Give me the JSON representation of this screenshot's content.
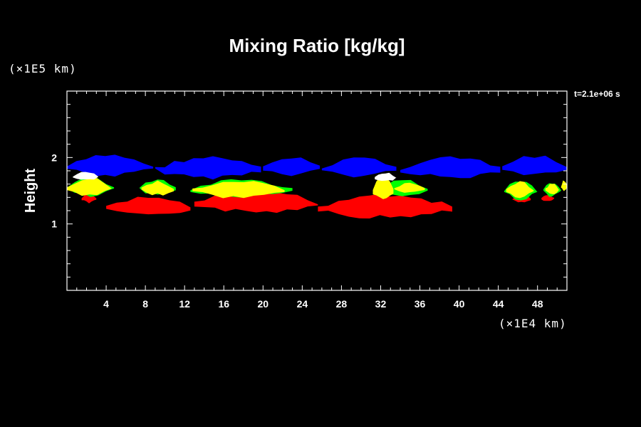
{
  "chart_data": {
    "type": "heatmap",
    "title": "Mixing Ratio [kg/kg]",
    "ylabel": "Height",
    "xlabel": "",
    "x_unit": "(×1E4 km)",
    "y_unit": "(×1E5 km)",
    "time_label": "t=2.1e+06 s",
    "xlim": [
      0,
      51
    ],
    "ylim": [
      0,
      3
    ],
    "x_ticks": [
      4,
      8,
      12,
      16,
      20,
      24,
      28,
      32,
      36,
      40,
      44,
      48
    ],
    "y_ticks": [
      1,
      2
    ],
    "background": "#000000",
    "layers": [
      {
        "color": "#0000ff",
        "blobs": [
          {
            "x": [
              0,
              8.8
            ],
            "y": [
              1.73,
              2.03
            ]
          },
          {
            "x": [
              9,
              19.8
            ],
            "y": [
              1.7,
              2.0
            ]
          },
          {
            "x": [
              20,
              25.8
            ],
            "y": [
              1.73,
              2.0
            ]
          },
          {
            "x": [
              26,
              33.6
            ],
            "y": [
              1.72,
              2.0
            ]
          },
          {
            "x": [
              34,
              44.2
            ],
            "y": [
              1.7,
              2.0
            ]
          },
          {
            "x": [
              44.4,
              51
            ],
            "y": [
              1.74,
              2.02
            ]
          }
        ]
      },
      {
        "color": "#ff0000",
        "blobs": [
          {
            "x": [
              1.5,
              3
            ],
            "y": [
              1.32,
              1.45
            ]
          },
          {
            "x": [
              4,
              12.6
            ],
            "y": [
              1.12,
              1.4
            ]
          },
          {
            "x": [
              13,
              25.6
            ],
            "y": [
              1.18,
              1.5
            ]
          },
          {
            "x": [
              25.6,
              39.3
            ],
            "y": [
              1.1,
              1.45
            ]
          },
          {
            "x": [
              45.4,
              47.3
            ],
            "y": [
              1.32,
              1.44
            ]
          },
          {
            "x": [
              48.4,
              49.7
            ],
            "y": [
              1.34,
              1.44
            ]
          }
        ]
      },
      {
        "color": "#00ff00",
        "blobs": [
          {
            "x": [
              0,
              4.8
            ],
            "y": [
              1.42,
              1.7
            ]
          },
          {
            "x": [
              7.4,
              11.1
            ],
            "y": [
              1.43,
              1.67
            ]
          },
          {
            "x": [
              12.6,
              23
            ],
            "y": [
              1.42,
              1.66
            ]
          },
          {
            "x": [
              31.6,
              36.8
            ],
            "y": [
              1.42,
              1.66
            ]
          },
          {
            "x": [
              44.6,
              48
            ],
            "y": [
              1.38,
              1.65
            ]
          },
          {
            "x": [
              48.6,
              50.4
            ],
            "y": [
              1.42,
              1.62
            ]
          }
        ]
      },
      {
        "color": "#ffff00",
        "blobs": [
          {
            "x": [
              0,
              4.6
            ],
            "y": [
              1.42,
              1.68
            ]
          },
          {
            "x": [
              7.6,
              10.9
            ],
            "y": [
              1.44,
              1.64
            ]
          },
          {
            "x": [
              12.8,
              22.2
            ],
            "y": [
              1.4,
              1.64
            ]
          },
          {
            "x": [
              31.2,
              33.3
            ],
            "y": [
              1.36,
              1.7
            ]
          },
          {
            "x": [
              33.4,
              36.5
            ],
            "y": [
              1.47,
              1.62
            ]
          },
          {
            "x": [
              44.8,
              47.6
            ],
            "y": [
              1.4,
              1.63
            ]
          },
          {
            "x": [
              48.8,
              50.2
            ],
            "y": [
              1.45,
              1.6
            ]
          },
          {
            "x": [
              50.4,
              51
            ],
            "y": [
              1.5,
              1.66
            ]
          }
        ]
      },
      {
        "color": "#ffffff",
        "blobs": [
          {
            "x": [
              0.6,
              3.2
            ],
            "y": [
              1.66,
              1.78
            ]
          },
          {
            "x": [
              31.4,
              33.6
            ],
            "y": [
              1.64,
              1.77
            ]
          }
        ]
      }
    ]
  }
}
